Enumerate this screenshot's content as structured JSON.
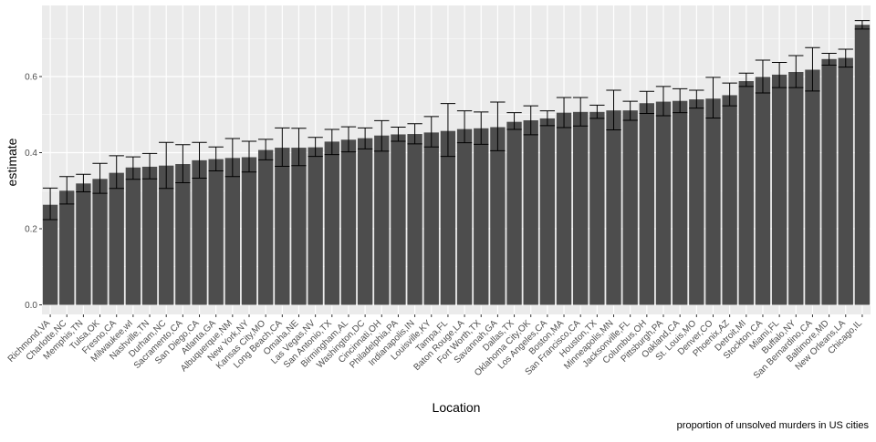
{
  "chart_data": {
    "type": "bar",
    "xlabel": "Location",
    "ylabel": "estimate",
    "caption": "proportion of unsolved murders in US cities",
    "ylim": [
      0,
      0.75
    ],
    "yticks": [
      0.0,
      0.2,
      0.4,
      0.6
    ],
    "ytick_labels": [
      "0.0",
      "0.2",
      "0.4",
      "0.6"
    ],
    "grid": true,
    "colors": {
      "bar": "#4d4d4d",
      "panel": "#ebebeb",
      "grid": "#ffffff",
      "errorbar": "#000000"
    },
    "categories": [
      "Richmond,VA",
      "Charlotte,NC",
      "Memphis,TN",
      "Tulsa,OK",
      "Fresno,CA",
      "Milwaukee,wI",
      "Nashville,TN",
      "Durham,NC",
      "Sacramento,CA",
      "San Diego,CA",
      "Atlanta,GA",
      "Albuquerque,NM",
      "New York,NY",
      "Kansas City,MO",
      "Long Beach,CA",
      "Omaha,NE",
      "Las Vegas,NV",
      "San Antonio,TX",
      "Birmingham,AL",
      "Washington,DC",
      "Cincinnati,OH",
      "Philadelphia,PA",
      "Indianapolis,IN",
      "Louisville,KY",
      "Tampa,FL",
      "Baton Rouge,LA",
      "Fort Worth,TX",
      "Savannah,GA",
      "Dallas,TX",
      "Oklahoma City,OK",
      "Los Angeles,CA",
      "Boston,MA",
      "San Francisco,CA",
      "Houston,TX",
      "Minneapolis,MN",
      "Jacksonville,FL",
      "Columbus,OH",
      "Pittsburgh,PA",
      "Oakland,CA",
      "St. Louis,MO",
      "Denver,CO",
      "Phoenix,AZ",
      "Detroit,MI",
      "Stockton,CA",
      "Miami,FL",
      "Buffalo,NY",
      "San Bernardino,CA",
      "Baltimore,MD",
      "New Orleans,LA",
      "Chicago,IL"
    ],
    "values": [
      0.263,
      0.3,
      0.319,
      0.331,
      0.347,
      0.361,
      0.363,
      0.366,
      0.37,
      0.38,
      0.383,
      0.386,
      0.388,
      0.407,
      0.413,
      0.413,
      0.414,
      0.429,
      0.434,
      0.438,
      0.445,
      0.448,
      0.449,
      0.453,
      0.457,
      0.462,
      0.464,
      0.467,
      0.481,
      0.485,
      0.49,
      0.505,
      0.507,
      0.507,
      0.511,
      0.511,
      0.53,
      0.534,
      0.536,
      0.54,
      0.542,
      0.551,
      0.588,
      0.599,
      0.605,
      0.612,
      0.618,
      0.646,
      0.649,
      0.736
    ],
    "ci_low": [
      0.224,
      0.265,
      0.297,
      0.293,
      0.306,
      0.33,
      0.331,
      0.306,
      0.321,
      0.333,
      0.352,
      0.337,
      0.349,
      0.381,
      0.364,
      0.366,
      0.39,
      0.395,
      0.402,
      0.41,
      0.404,
      0.43,
      0.423,
      0.415,
      0.39,
      0.426,
      0.422,
      0.405,
      0.461,
      0.447,
      0.471,
      0.466,
      0.47,
      0.49,
      0.46,
      0.485,
      0.503,
      0.497,
      0.505,
      0.517,
      0.491,
      0.523,
      0.574,
      0.557,
      0.571,
      0.571,
      0.562,
      0.63,
      0.625,
      0.725
    ],
    "ci_high": [
      0.307,
      0.337,
      0.343,
      0.372,
      0.392,
      0.389,
      0.398,
      0.427,
      0.421,
      0.427,
      0.415,
      0.437,
      0.43,
      0.435,
      0.465,
      0.464,
      0.44,
      0.461,
      0.468,
      0.465,
      0.484,
      0.467,
      0.476,
      0.495,
      0.529,
      0.51,
      0.507,
      0.533,
      0.505,
      0.523,
      0.51,
      0.545,
      0.545,
      0.525,
      0.564,
      0.535,
      0.561,
      0.574,
      0.568,
      0.564,
      0.598,
      0.583,
      0.609,
      0.643,
      0.637,
      0.655,
      0.676,
      0.661,
      0.672,
      0.747
    ]
  }
}
